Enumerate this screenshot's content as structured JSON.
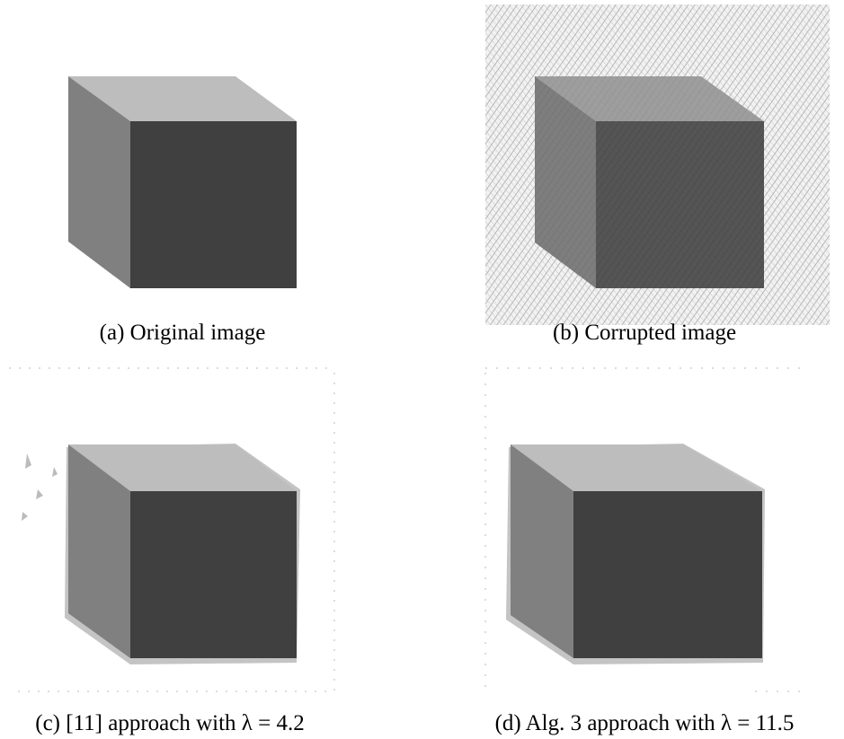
{
  "figure": {
    "panels": [
      {
        "caption": "(a) Original image"
      },
      {
        "caption": "(b) Corrupted image"
      },
      {
        "caption": "(c) [11] approach with λ = 4.2"
      },
      {
        "caption": "(d) Alg. 3 approach with λ = 11.5"
      }
    ]
  }
}
